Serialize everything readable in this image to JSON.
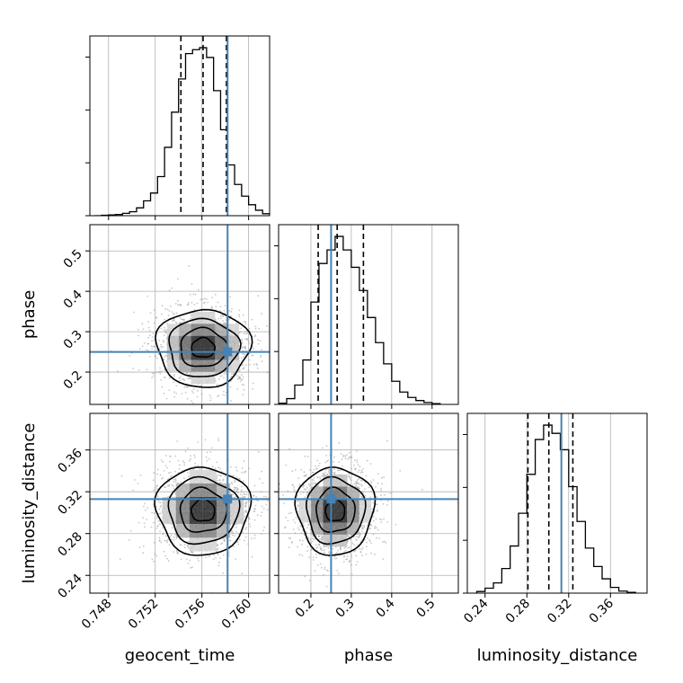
{
  "chart_data": {
    "type": "corner",
    "parameters": [
      "geocent_time",
      "phase",
      "luminosity_distance"
    ],
    "axis_labels": {
      "geocent_time": "geocent_time",
      "phase": "phase",
      "luminosity_distance": "luminosity_distance"
    },
    "ranges": {
      "geocent_time": [
        0.7464,
        0.7618
      ],
      "phase": [
        0.12,
        0.565
      ],
      "luminosity_distance": [
        0.223,
        0.395
      ]
    },
    "ticks": {
      "geocent_time": [
        0.748,
        0.752,
        0.756,
        0.76
      ],
      "phase": [
        0.2,
        0.3,
        0.4,
        0.5
      ],
      "luminosity_distance": [
        0.24,
        0.28,
        0.32,
        0.36
      ]
    },
    "tick_labels": {
      "geocent_time": [
        "0.748",
        "0.752",
        "0.756",
        "0.760"
      ],
      "phase": [
        "0.2",
        "0.3",
        "0.4",
        "0.5"
      ],
      "luminosity_distance": [
        "0.24",
        "0.28",
        "0.32",
        "0.36"
      ]
    },
    "truths": {
      "geocent_time": 0.7582,
      "phase": 0.25,
      "luminosity_distance": 0.313
    },
    "quantiles": {
      "geocent_time": [
        0.7542,
        0.7561,
        0.7581
      ],
      "phase": [
        0.218,
        0.265,
        0.33
      ],
      "luminosity_distance": [
        0.281,
        0.301,
        0.324
      ]
    },
    "posterior_means": {
      "geocent_time": 0.7561,
      "phase": 0.26,
      "luminosity_distance": 0.302
    },
    "posterior_sds": {
      "geocent_time": 0.002,
      "phase": 0.048,
      "luminosity_distance": 0.021
    },
    "histograms": {
      "geocent_time": {
        "edges": [
          0.7468,
          0.7474,
          0.748,
          0.7486,
          0.7492,
          0.7498,
          0.7504,
          0.751,
          0.7516,
          0.7522,
          0.7528,
          0.7534,
          0.754,
          0.7546,
          0.7552,
          0.7558,
          0.7564,
          0.757,
          0.7576,
          0.7582,
          0.7588,
          0.7594,
          0.76,
          0.7606,
          0.7612,
          0.7618
        ],
        "counts": [
          0,
          1,
          2,
          3,
          6,
          10,
          20,
          38,
          58,
          100,
          175,
          265,
          350,
          415,
          425,
          430,
          405,
          320,
          220,
          130,
          80,
          50,
          28,
          14,
          5
        ]
      },
      "phase": {
        "edges": [
          0.12,
          0.14,
          0.16,
          0.18,
          0.2,
          0.22,
          0.24,
          0.26,
          0.28,
          0.3,
          0.32,
          0.34,
          0.36,
          0.38,
          0.4,
          0.42,
          0.44,
          0.46,
          0.48,
          0.5,
          0.52
        ],
        "counts": [
          3,
          15,
          50,
          115,
          265,
          365,
          400,
          435,
          400,
          355,
          295,
          225,
          160,
          105,
          60,
          32,
          18,
          10,
          5,
          2
        ]
      },
      "luminosity_distance": {
        "edges": [
          0.232,
          0.24,
          0.248,
          0.256,
          0.264,
          0.272,
          0.28,
          0.288,
          0.296,
          0.304,
          0.312,
          0.32,
          0.328,
          0.336,
          0.344,
          0.352,
          0.36,
          0.368,
          0.376,
          0.384
        ],
        "counts": [
          4,
          12,
          25,
          60,
          115,
          195,
          290,
          375,
          410,
          390,
          350,
          260,
          175,
          110,
          65,
          35,
          14,
          5,
          2
        ]
      }
    },
    "grid": true,
    "colors": {
      "truth": "#4682b4",
      "hist": "#000000",
      "quantile": "#000000",
      "grid": "#b0b0b0"
    }
  }
}
